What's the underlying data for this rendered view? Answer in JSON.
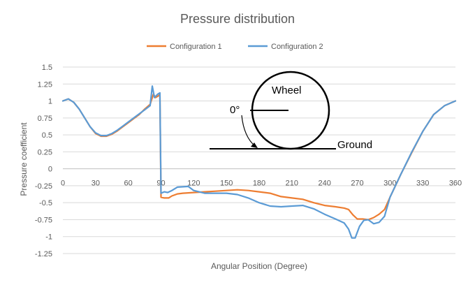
{
  "chart_data": {
    "type": "line",
    "title": "Pressure distribution",
    "xlabel": "Angular Position (Degree)",
    "ylabel": "Pressure coefficient",
    "xlim": [
      0,
      360
    ],
    "ylim": [
      -1.25,
      1.5
    ],
    "x_ticks": [
      0,
      30,
      60,
      90,
      120,
      150,
      180,
      210,
      240,
      270,
      300,
      330,
      360
    ],
    "y_ticks": [
      1.5,
      1.25,
      1,
      0.75,
      0.5,
      0.25,
      0,
      -0.25,
      -0.5,
      -0.75,
      -1,
      -1.25
    ],
    "x_tick_labels": [
      "0",
      "30",
      "60",
      "90",
      "120",
      "150",
      "180",
      "210",
      "240",
      "270",
      "300",
      "330",
      "360"
    ],
    "y_tick_labels": [
      "1.5",
      "1.25",
      "1",
      "0.75",
      "0.5",
      "0.25",
      "0",
      "-0.25",
      "-0.5",
      "-0.75",
      "-1",
      "-1.25"
    ],
    "grid": "horizontal",
    "legend_position": "top",
    "series": [
      {
        "name": "Configuration 1",
        "color": "#ED7D31",
        "points": [
          [
            0,
            1.0
          ],
          [
            5,
            1.03
          ],
          [
            10,
            0.98
          ],
          [
            15,
            0.88
          ],
          [
            20,
            0.75
          ],
          [
            25,
            0.62
          ],
          [
            30,
            0.52
          ],
          [
            35,
            0.48
          ],
          [
            40,
            0.48
          ],
          [
            45,
            0.51
          ],
          [
            50,
            0.56
          ],
          [
            55,
            0.62
          ],
          [
            60,
            0.68
          ],
          [
            65,
            0.74
          ],
          [
            70,
            0.8
          ],
          [
            75,
            0.88
          ],
          [
            80,
            0.95
          ],
          [
            83,
            1.1
          ],
          [
            85,
            1.05
          ],
          [
            88,
            1.08
          ],
          [
            89,
            1.1
          ],
          [
            90,
            -0.42
          ],
          [
            93,
            -0.43
          ],
          [
            97,
            -0.43
          ],
          [
            100,
            -0.4
          ],
          [
            105,
            -0.37
          ],
          [
            110,
            -0.36
          ],
          [
            120,
            -0.35
          ],
          [
            130,
            -0.34
          ],
          [
            140,
            -0.33
          ],
          [
            150,
            -0.32
          ],
          [
            160,
            -0.31
          ],
          [
            170,
            -0.32
          ],
          [
            180,
            -0.34
          ],
          [
            190,
            -0.36
          ],
          [
            200,
            -0.41
          ],
          [
            210,
            -0.43
          ],
          [
            220,
            -0.45
          ],
          [
            230,
            -0.5
          ],
          [
            240,
            -0.54
          ],
          [
            250,
            -0.56
          ],
          [
            258,
            -0.58
          ],
          [
            262,
            -0.6
          ],
          [
            266,
            -0.68
          ],
          [
            270,
            -0.74
          ],
          [
            275,
            -0.74
          ],
          [
            280,
            -0.75
          ],
          [
            285,
            -0.72
          ],
          [
            290,
            -0.67
          ],
          [
            295,
            -0.6
          ],
          [
            300,
            -0.42
          ],
          [
            310,
            -0.08
          ],
          [
            320,
            0.24
          ],
          [
            330,
            0.55
          ],
          [
            340,
            0.8
          ],
          [
            350,
            0.93
          ],
          [
            360,
            1.0
          ]
        ]
      },
      {
        "name": "Configuration 2",
        "color": "#5B9BD5",
        "points": [
          [
            0,
            1.0
          ],
          [
            5,
            1.03
          ],
          [
            10,
            0.98
          ],
          [
            15,
            0.88
          ],
          [
            20,
            0.75
          ],
          [
            25,
            0.62
          ],
          [
            30,
            0.53
          ],
          [
            35,
            0.49
          ],
          [
            40,
            0.49
          ],
          [
            45,
            0.52
          ],
          [
            50,
            0.57
          ],
          [
            55,
            0.63
          ],
          [
            60,
            0.69
          ],
          [
            65,
            0.75
          ],
          [
            70,
            0.81
          ],
          [
            75,
            0.87
          ],
          [
            80,
            0.93
          ],
          [
            82,
            1.22
          ],
          [
            84,
            1.05
          ],
          [
            87,
            1.1
          ],
          [
            89,
            1.12
          ],
          [
            90,
            -0.36
          ],
          [
            93,
            -0.34
          ],
          [
            96,
            -0.35
          ],
          [
            100,
            -0.32
          ],
          [
            105,
            -0.27
          ],
          [
            115,
            -0.26
          ],
          [
            120,
            -0.32
          ],
          [
            130,
            -0.36
          ],
          [
            140,
            -0.36
          ],
          [
            150,
            -0.36
          ],
          [
            160,
            -0.38
          ],
          [
            170,
            -0.43
          ],
          [
            180,
            -0.5
          ],
          [
            190,
            -0.55
          ],
          [
            200,
            -0.56
          ],
          [
            210,
            -0.55
          ],
          [
            220,
            -0.54
          ],
          [
            230,
            -0.59
          ],
          [
            240,
            -0.67
          ],
          [
            250,
            -0.74
          ],
          [
            258,
            -0.8
          ],
          [
            262,
            -0.89
          ],
          [
            265,
            -1.02
          ],
          [
            268,
            -1.02
          ],
          [
            272,
            -0.85
          ],
          [
            276,
            -0.76
          ],
          [
            280,
            -0.75
          ],
          [
            285,
            -0.81
          ],
          [
            290,
            -0.79
          ],
          [
            295,
            -0.7
          ],
          [
            300,
            -0.42
          ],
          [
            310,
            -0.08
          ],
          [
            320,
            0.25
          ],
          [
            330,
            0.55
          ],
          [
            340,
            0.8
          ],
          [
            350,
            0.93
          ],
          [
            360,
            1.0
          ]
        ]
      }
    ],
    "annotations": {
      "wheel_label": "Wheel",
      "angle_label": "0°",
      "ground_label": "Ground"
    }
  }
}
